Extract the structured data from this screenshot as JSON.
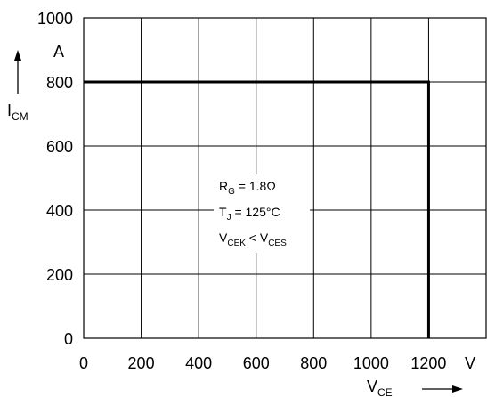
{
  "chart_data": {
    "type": "line",
    "title": "",
    "xlim": [
      0,
      1400
    ],
    "ylim": [
      0,
      1000
    ],
    "x_ticks": [
      0,
      200,
      400,
      600,
      800,
      1000,
      1200
    ],
    "y_ticks": [
      0,
      200,
      400,
      600,
      800,
      1000
    ],
    "x_unit": "V",
    "y_unit": "A",
    "x_axis_label": {
      "main": "V",
      "sub": "CE"
    },
    "y_axis_label": {
      "main": "I",
      "sub": "CM"
    },
    "grid": true,
    "series": [
      {
        "x": [
          0,
          1200,
          1200
        ],
        "y": [
          800,
          800,
          0
        ]
      }
    ],
    "annotations": [
      {
        "main": "R",
        "sub": "G",
        "rest": " = 1.8Ω"
      },
      {
        "main": "T",
        "sub": "J",
        "rest": " = 125°C"
      },
      {
        "main": "V",
        "sub": "CEK",
        "rest": " < V",
        "sub2": "CES"
      }
    ],
    "colors": {
      "line": "#000000",
      "grid": "#000000",
      "background": "#ffffff"
    }
  }
}
